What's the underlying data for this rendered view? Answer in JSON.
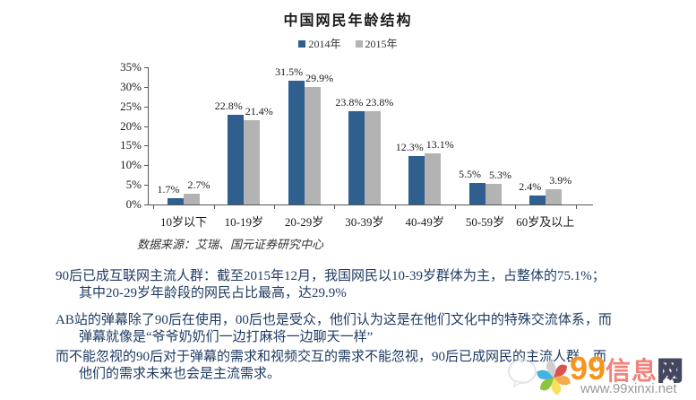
{
  "chart_data": {
    "type": "bar",
    "title": "中国网民年龄结构",
    "categories": [
      "10岁以下",
      "10-19岁",
      "20-29岁",
      "30-39岁",
      "40-49岁",
      "50-59岁",
      "60岁及以上"
    ],
    "series": [
      {
        "name": "2014年",
        "color": "#2e5f8f",
        "values": [
          1.7,
          22.8,
          31.5,
          23.8,
          12.3,
          5.5,
          2.4
        ]
      },
      {
        "name": "2015年",
        "color": "#b3b3b3",
        "values": [
          2.7,
          21.4,
          29.9,
          23.8,
          13.1,
          5.3,
          3.9
        ]
      }
    ],
    "xlabel": "",
    "ylabel": "",
    "ylim": [
      0,
      35
    ],
    "ytick_step": 5,
    "y_tick_labels": [
      "0%",
      "5%",
      "10%",
      "15%",
      "20%",
      "25%",
      "30%",
      "35%"
    ],
    "grid": false,
    "legend_position": "top",
    "data_labels": true,
    "label_suffix": "%"
  },
  "legend": {
    "items": [
      {
        "label": "2014年",
        "color": "#2e5f8f"
      },
      {
        "label": "2015年",
        "color": "#b3b3b3"
      }
    ]
  },
  "source_note": "数据来源：艾瑞、国元证券研究中心",
  "paragraphs": [
    {
      "lines": [
        "90后已成互联网主流人群：截至2015年12月，我国网民以10-39岁群体为主，占整体的75.1%；",
        "其中20-29岁年龄段的网民占比最高，达29.9%"
      ]
    },
    {
      "lines": [
        "AB站的弹幕除了90后在使用，00后也是受众，他们认为这是在他们文化中的特殊交流体系，而",
        "弹幕就像是“爷爷奶奶们一边打麻将一边聊天一样”"
      ]
    },
    {
      "lines": [
        "而不能忽视的90后对于弹幕的需求和视频交互的需求不能忽视，90后已成网民的主流人群，而",
        "他们的需求未来也会是主流需求。"
      ]
    }
  ],
  "watermark": {
    "logo_99": "99",
    "logo_xinxi": "信息",
    "logo_wang": "网",
    "url": "www.99xinxi.net",
    "colors": {
      "nine": "#f7941d",
      "xinxi": "#f2837b",
      "wang_outline": "#44485e",
      "url_gray": "#9a9a9a",
      "petals": [
        "#d9534f",
        "#f0ad4e",
        "#f7e15e",
        "#8cc63f",
        "#45b3e0",
        "#cfcfcf"
      ]
    }
  },
  "text_color": "#1f3b63"
}
